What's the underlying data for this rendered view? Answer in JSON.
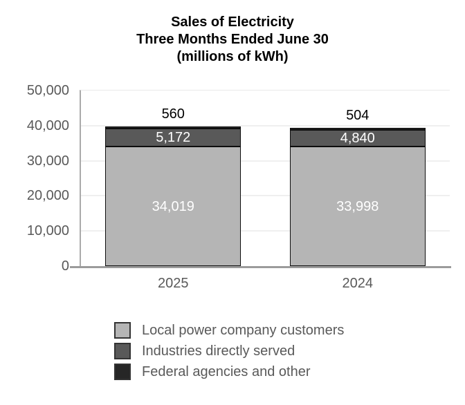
{
  "chart_data": {
    "type": "stacked-bar",
    "title": "Sales of Electricity\nThree Months Ended June 30\n(millions of kWh)",
    "categories": [
      "2025",
      "2024"
    ],
    "series": [
      {
        "name": "Local power company customers",
        "color": "#b5b5b5",
        "label_color": "#ffffff",
        "label_placement": "inside",
        "values": [
          34019,
          33998
        ],
        "value_labels": [
          "34,019",
          "33,998"
        ]
      },
      {
        "name": "Industries directly served",
        "color": "#595959",
        "label_color": "#ffffff",
        "label_placement": "inside",
        "values": [
          5172,
          4840
        ],
        "value_labels": [
          "5,172",
          "4,840"
        ]
      },
      {
        "name": "Federal agencies and other",
        "color": "#262626",
        "label_color": "#000000",
        "label_placement": "above",
        "values": [
          560,
          504
        ],
        "value_labels": [
          "560",
          "504"
        ]
      }
    ],
    "ylim": [
      0,
      50000
    ],
    "yticks": [
      0,
      10000,
      20000,
      30000,
      40000,
      50000
    ],
    "ytick_labels": [
      "0",
      "10,000",
      "20,000",
      "30,000",
      "40,000",
      "50,000"
    ],
    "axis_text_color": "#595959",
    "grid": "horizontal",
    "legend_position": "bottom"
  }
}
